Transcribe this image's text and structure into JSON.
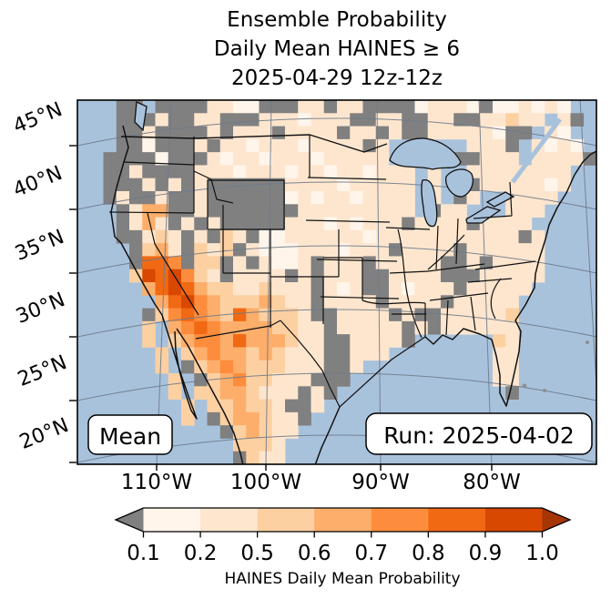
{
  "title": {
    "lines": [
      "Ensemble Probability",
      "Daily Mean HAINES  ≥  6",
      "2025-04-29 12z-12z"
    ]
  },
  "map": {
    "lat_labels": [
      "45°N",
      "40°N",
      "35°N",
      "30°N",
      "25°N",
      "20°N"
    ],
    "lon_labels": [
      "110°W",
      "100°W",
      "90°W",
      "80°W"
    ],
    "mean_label": "Mean",
    "run_label": "Run: 2025-04-02",
    "ocean_color": "#a9c2dc",
    "missing_color": "#808080"
  },
  "colorbar": {
    "ticks": [
      "0.1",
      "0.2",
      "0.5",
      "0.6",
      "0.7",
      "0.8",
      "0.9",
      "1.0"
    ],
    "label": "HAINES Daily Mean Probability",
    "colors": [
      "#fff5eb",
      "#fee6ce",
      "#fdd0a2",
      "#fdae6b",
      "#fd8d3c",
      "#f16913",
      "#d94801"
    ],
    "under_arrow_color": "#808080",
    "over_arrow_color": "#a63603"
  },
  "chart_data": {
    "type": "heatmap",
    "title": "Ensemble Probability Daily Mean HAINES ≥ 6, 2025-04-29 12z-12z",
    "colorbar_label": "HAINES Daily Mean Probability",
    "colorbar_ticks": [
      0.1,
      0.2,
      0.5,
      0.6,
      0.7,
      0.8,
      0.9,
      1.0
    ],
    "lat_ticks_deg_n": [
      45,
      40,
      35,
      30,
      25,
      20
    ],
    "lon_ticks_deg_w": [
      110,
      100,
      90,
      80
    ],
    "annotations": [
      "Mean",
      "Run: 2025-04-02"
    ],
    "palette": {
      "B": "#a9c2dc",
      "G": "#808080",
      ".": "#fff5eb",
      "1": "#fee6ce",
      "2": "#fdd0a2",
      "3": "#fdae6b",
      "4": "#fd8d3c",
      "5": "#f16913",
      "6": "#d94801"
    },
    "value_classes": {
      "B": "water",
      "G": "probability < 0.1",
      ".": "0.1 - 0.2",
      "1": "0.2 - 0.5",
      "2": "0.5 - 0.6",
      "3": "0.6 - 0.7",
      "4": "0.7 - 0.8",
      "5": "0.8 - 0.9",
      "6": "0.9 - 1.0"
    },
    "grid_rows": [
      "BBBGGBGGGG11..GGG11G11GGGG.111.G..1.1.BB",
      "BBBGGG1GG11GGG111.111GG11GG11GG11211B1GB",
      "BBBGG1GGGG1G111G1111G11G1GG11111.GGB1.BB",
      "BBBGG.GGG1G11.111.1111G1BBBBBB111GB1.1.B",
      "BBGGGG.GGG1.11.111.11111BBBBBGG111B1111G",
      "BBGG1GGGG111.111.11.11.111B1BB11111111BB",
      "BBGGG1G1G1GGGGGG1111.11111B1BBG11111.1BB",
      "BBG1GG1GG1GGGGGG.1.11.1111B1BG1BB1111BBB",
      "BBBG133GG1GGGGGGG111111111BG11BBB111BBBB",
      "BBBG131G1G1GGGGG111.1.111G1111G1111BBBBB",
      "BBBGG121G1G21G..111111.11111111111G1BBBB",
      "BBBBG231G212G1...111.111G1111G111111BBBB",
      "BBBBG554G22G1G1..1G111G11111GG1G1111BBBB",
      "BBBB2656421G1111G1G111GG1111GGG11111BBBB",
      "BBBBB3565322112111G1.1GG1.111G11111BBBBB",
      "BBBBBB356432223211G1111G1111G11111BBBBBB",
      "BBBBBG245432532221GG1111G1GG111112BBBBBB",
      "BBBBB2B345433332211G11111G1G111111BBBBBB",
      "BBBBB2B234435333211GG1111GBBBBBB21BBBBBB",
      "BBBBBB2B23433232111GG111BBBBBBBB11BBBBBB",
      "BBBBBB2BG2343222111GG1BBBBBBBBBB11BBBBBB",
      "BBBBBBB2BG23422111GGGBBBBBBBBBBB11BBBBBB",
      "BBBBBBB2B22332111G1GBBBBBBBBBBBBBGBBBBBB",
      "BBBBBBBB2B223221GG1BBBBBBBBBBBBBBBBBBBBB",
      "BBBBBBBB2BG233211GBBBBBBBBBBBBBBBBBBBBBB",
      "BBBBBBBBBBBG23211BBBBBBBBBBBBBBBBBBBBBBB",
      "BBBBBBBBBBBB2221BBBBBBBBBBBBBBBBBBBBBBBB",
      "BBBBBBBBBBBBG211BBBBBBBBBBBBBBBBBBBBBBBB"
    ]
  }
}
